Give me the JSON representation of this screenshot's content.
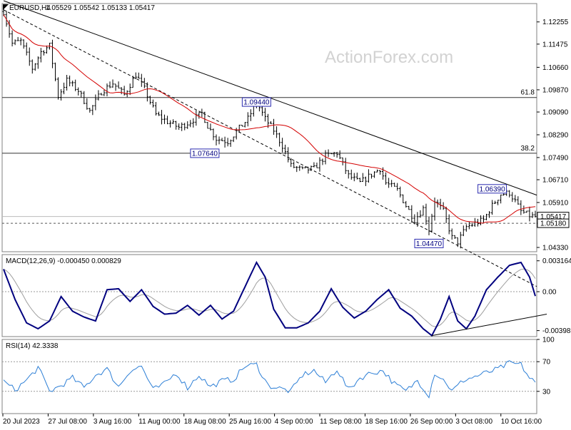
{
  "chart_data": {
    "type": "candlestick",
    "symbol": "EURUSD,H4",
    "ohlc_header": "1.05529 1.05542 1.05133 1.05417",
    "watermark": "ActionForex.com",
    "price_panel": {
      "ylim": [
        1.0418,
        1.129
      ],
      "y_ticks": [
        "1.12255",
        "1.11475",
        "1.10660",
        "1.09870",
        "1.09090",
        "1.08290",
        "1.07490",
        "1.06710",
        "1.05910",
        "1.05180",
        "1.04330"
      ],
      "current_price_label": "1.05417",
      "fib_levels": [
        {
          "label": "61.8",
          "price": 1.096
        },
        {
          "label": "38.2",
          "price": 1.0764
        }
      ],
      "dotted_level": {
        "label": "1.05180",
        "price": 1.0518
      },
      "annotations": [
        {
          "text": "1.09440",
          "price": 1.0944,
          "bar": 88
        },
        {
          "text": "1.07640",
          "price": 1.0764,
          "bar": 70
        },
        {
          "text": "1.06390",
          "price": 1.0639,
          "bar": 170
        },
        {
          "text": "1.04470",
          "price": 1.0447,
          "bar": 148
        }
      ],
      "trendlines": [
        {
          "style": "solid",
          "from": {
            "bar": 0,
            "price": 1.13
          },
          "to": {
            "bar": 189,
            "price": 1.0604
          }
        },
        {
          "style": "dashed",
          "from": {
            "bar": 0,
            "price": 1.1268
          },
          "to": {
            "bar": 158,
            "price": 1.044
          }
        }
      ],
      "key_prices": [
        [
          0,
          1.1262
        ],
        [
          3,
          1.115
        ],
        [
          6,
          1.1158
        ],
        [
          10,
          1.1062
        ],
        [
          13,
          1.112
        ],
        [
          16,
          1.1142
        ],
        [
          19,
          1.0965
        ],
        [
          22,
          1.102
        ],
        [
          26,
          1.0985
        ],
        [
          30,
          1.0912
        ],
        [
          34,
          1.098
        ],
        [
          38,
          1.101
        ],
        [
          42,
          1.097
        ],
        [
          46,
          1.104
        ],
        [
          49,
          1.099
        ],
        [
          53,
          1.09
        ],
        [
          57,
          1.0875
        ],
        [
          61,
          1.0855
        ],
        [
          65,
          1.0875
        ],
        [
          69,
          1.0905
        ],
        [
          71,
          1.086
        ],
        [
          74,
          1.0815
        ],
        [
          78,
          1.0805
        ],
        [
          82,
          1.0852
        ],
        [
          85,
          1.0885
        ],
        [
          88,
          1.0944
        ],
        [
          91,
          1.0885
        ],
        [
          94,
          1.0845
        ],
        [
          97,
          1.079
        ],
        [
          100,
          1.072
        ],
        [
          104,
          1.0705
        ],
        [
          108,
          1.071
        ],
        [
          112,
          1.0755
        ],
        [
          116,
          1.0765
        ],
        [
          120,
          1.0685
        ],
        [
          124,
          1.066
        ],
        [
          128,
          1.069
        ],
        [
          131,
          1.071
        ],
        [
          133,
          1.066
        ],
        [
          137,
          1.0635
        ],
        [
          140,
          1.058
        ],
        [
          143,
          1.053
        ],
        [
          146,
          1.057
        ],
        [
          148,
          1.0496
        ],
        [
          150,
          1.0598
        ],
        [
          153,
          1.056
        ],
        [
          156,
          1.0468
        ],
        [
          158,
          1.0452
        ],
        [
          161,
          1.0505
        ],
        [
          164,
          1.0518
        ],
        [
          167,
          1.053
        ],
        [
          170,
          1.058
        ],
        [
          173,
          1.062
        ],
        [
          176,
          1.0625
        ],
        [
          178,
          1.0595
        ],
        [
          180,
          1.056
        ],
        [
          183,
          1.0545
        ],
        [
          185,
          1.0541
        ]
      ],
      "bars_total": 186
    },
    "macd_panel": {
      "label": "MACD(12,26,9) -0.000450 0.000829",
      "ylim": [
        -0.0046,
        0.0038
      ],
      "y_ticks": [
        "0.003164",
        "0.00",
        "-0.003986"
      ],
      "key_values": [
        [
          0,
          0.0023
        ],
        [
          4,
          -0.0008
        ],
        [
          8,
          -0.0032
        ],
        [
          12,
          -0.0038
        ],
        [
          16,
          -0.003
        ],
        [
          20,
          -0.0005
        ],
        [
          24,
          -0.002
        ],
        [
          28,
          -0.0026
        ],
        [
          32,
          -0.003
        ],
        [
          36,
          0.0002
        ],
        [
          40,
          0.0003
        ],
        [
          44,
          -0.001
        ],
        [
          48,
          0.0002
        ],
        [
          52,
          -0.0015
        ],
        [
          56,
          -0.0023
        ],
        [
          60,
          -0.0022
        ],
        [
          64,
          -0.0014
        ],
        [
          68,
          -0.0024
        ],
        [
          72,
          -0.0014
        ],
        [
          76,
          -0.0028
        ],
        [
          80,
          -0.002
        ],
        [
          84,
          0.0005
        ],
        [
          88,
          0.003
        ],
        [
          91,
          0.0015
        ],
        [
          94,
          -0.0018
        ],
        [
          98,
          -0.0037
        ],
        [
          102,
          -0.0037
        ],
        [
          106,
          -0.0032
        ],
        [
          110,
          -0.002
        ],
        [
          114,
          0.0003
        ],
        [
          118,
          -0.0016
        ],
        [
          122,
          -0.0027
        ],
        [
          126,
          -0.002
        ],
        [
          130,
          -0.0008
        ],
        [
          134,
          0.0002
        ],
        [
          138,
          -0.0017
        ],
        [
          142,
          -0.0025
        ],
        [
          146,
          -0.0038
        ],
        [
          149,
          -0.0045
        ],
        [
          152,
          -0.0028
        ],
        [
          155,
          -0.0005
        ],
        [
          158,
          -0.003
        ],
        [
          161,
          -0.0038
        ],
        [
          164,
          -0.0025
        ],
        [
          168,
          0.0002
        ],
        [
          172,
          0.0015
        ],
        [
          176,
          0.0027
        ],
        [
          180,
          0.003
        ],
        [
          183,
          0.0015
        ],
        [
          185,
          -0.00045
        ]
      ],
      "trendline": {
        "from": {
          "bar": 149,
          "value": -0.0045
        },
        "to": {
          "bar": 189,
          "value": -0.0023
        }
      }
    },
    "rsi_panel": {
      "label": "RSI(14) 42.3338",
      "ylim": [
        0,
        100
      ],
      "y_ticks": [
        "100",
        "70",
        "30",
        "0"
      ],
      "levels": [
        70,
        30
      ],
      "key_values": [
        [
          0,
          43
        ],
        [
          4,
          32
        ],
        [
          8,
          45
        ],
        [
          12,
          62
        ],
        [
          16,
          30
        ],
        [
          20,
          38
        ],
        [
          24,
          48
        ],
        [
          28,
          35
        ],
        [
          32,
          52
        ],
        [
          36,
          60
        ],
        [
          40,
          36
        ],
        [
          44,
          58
        ],
        [
          48,
          64
        ],
        [
          52,
          32
        ],
        [
          56,
          40
        ],
        [
          60,
          55
        ],
        [
          64,
          35
        ],
        [
          68,
          52
        ],
        [
          72,
          36
        ],
        [
          76,
          44
        ],
        [
          80,
          46
        ],
        [
          84,
          64
        ],
        [
          88,
          66
        ],
        [
          92,
          38
        ],
        [
          96,
          34
        ],
        [
          100,
          30
        ],
        [
          104,
          52
        ],
        [
          108,
          58
        ],
        [
          112,
          42
        ],
        [
          116,
          60
        ],
        [
          120,
          32
        ],
        [
          124,
          48
        ],
        [
          128,
          55
        ],
        [
          132,
          58
        ],
        [
          136,
          40
        ],
        [
          140,
          30
        ],
        [
          144,
          45
        ],
        [
          148,
          25
        ],
        [
          150,
          55
        ],
        [
          154,
          42
        ],
        [
          156,
          30
        ],
        [
          160,
          45
        ],
        [
          164,
          50
        ],
        [
          168,
          55
        ],
        [
          172,
          60
        ],
        [
          176,
          68
        ],
        [
          180,
          66
        ],
        [
          183,
          48
        ],
        [
          185,
          42.3
        ]
      ]
    },
    "x_tick_labels": [
      "20 Jul 2023",
      "27 Jul 08:00",
      "3 Aug 16:00",
      "11 Aug 00:00",
      "18 Aug 08:00",
      "25 Aug 16:00",
      "4 Sep 00:00",
      "11 Sep 08:00",
      "18 Sep 16:00",
      "26 Sep 00:00",
      "3 Oct 08:00",
      "10 Oct 16:00"
    ],
    "colors": {
      "price_line": "#000000",
      "moving_average": "#d40000",
      "macd_line": "#00007f",
      "signal_line": "#9e9e9e",
      "rsi_line": "#2d7fd6",
      "panel_border": "#808080",
      "dotted": "#555555"
    }
  }
}
